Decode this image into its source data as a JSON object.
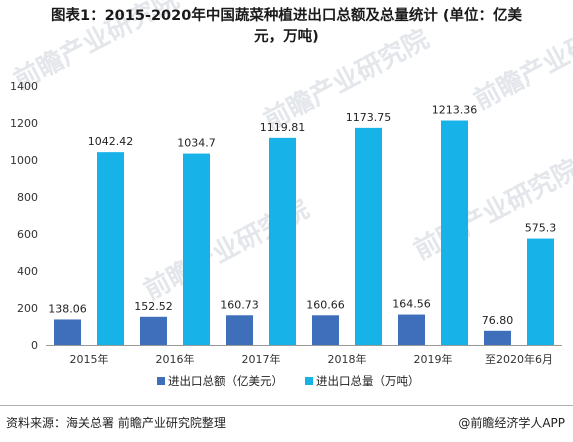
{
  "title_line1": "图表1：2015-2020年中国蔬菜种植进出口总额及总量统计 (单位：亿美",
  "title_line2": "元，万吨)",
  "source": "资料来源：海关总署 前瞻产业研究院整理",
  "brand": "@前瞻经济学人APP",
  "watermark": "前瞻产业研究院",
  "colors": {
    "value": "#3f6fba",
    "volume": "#17b2e8"
  },
  "chart_data": {
    "type": "bar",
    "categories": [
      "2015年",
      "2016年",
      "2017年",
      "2018年",
      "2019年",
      "至2020年6月"
    ],
    "series": [
      {
        "name": "进出口总额（亿美元）",
        "values": [
          138.06,
          152.52,
          160.73,
          160.66,
          164.56,
          76.8
        ],
        "labels": [
          "138.06",
          "152.52",
          "160.73",
          "160.66",
          "164.56",
          "76.80"
        ]
      },
      {
        "name": "进出口总量（万吨）",
        "values": [
          1042.42,
          1034.7,
          1119.81,
          1173.75,
          1213.36,
          575.3
        ],
        "labels": [
          "1042.42",
          "1034.7",
          "1119.81",
          "1173.75",
          "1213.36",
          "575.3"
        ]
      }
    ],
    "yticks": [
      0,
      200,
      400,
      600,
      800,
      1000,
      1200,
      1400
    ],
    "ylim": [
      0,
      1400
    ],
    "legend": "bottom",
    "grid": false
  }
}
